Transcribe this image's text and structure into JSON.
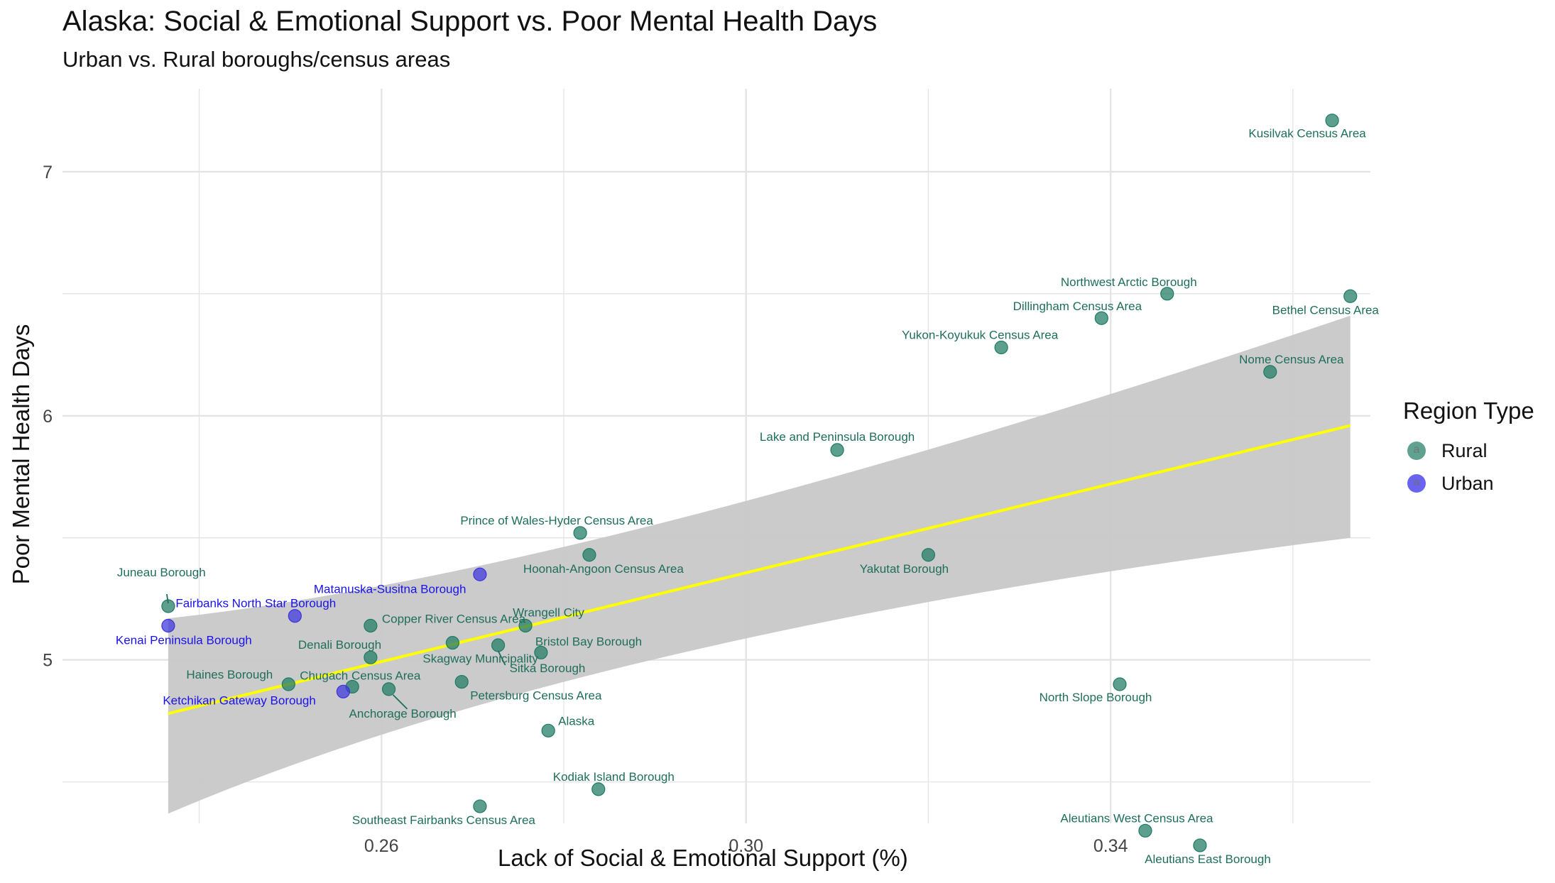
{
  "chart_data": {
    "type": "scatter",
    "title": "Alaska: Social & Emotional Support vs. Poor Mental Health Days",
    "subtitle": "Urban vs. Rural boroughs/census areas",
    "xlabel": "Lack of Social & Emotional Support (%)",
    "ylabel": "Poor Mental Health Days",
    "xlim": [
      0.225,
      0.3685
    ],
    "ylim": [
      4.33,
      7.34
    ],
    "x_ticks": [
      0.26,
      0.3,
      0.34
    ],
    "x_tick_labels": [
      "0.26",
      "0.30",
      "0.34"
    ],
    "y_ticks": [
      5,
      6,
      7
    ],
    "y_tick_labels": [
      "5",
      "6",
      "7"
    ],
    "grid": true,
    "legend": {
      "title": "Region Type",
      "placement": "right",
      "entries": [
        {
          "name": "Rural",
          "color": "#1f7a62",
          "key_glyph": "a"
        },
        {
          "name": "Urban",
          "color": "#2a22e6",
          "key_glyph": "a"
        }
      ]
    },
    "colors": {
      "rural_point": "#1f7a62",
      "rural_label": "#1f6e5a",
      "urban_point": "#3b33dd",
      "urban_label": "#1a12e8",
      "trend_line": "#ffff00",
      "band": "#c8c8c8",
      "grid": "#e4e4e4"
    },
    "trend": {
      "type": "linear",
      "x_range": [
        0.2366,
        0.3663
      ],
      "y_start": 4.78,
      "y_end": 5.96,
      "band_lower": [
        4.37,
        5.5
      ],
      "band_upper": [
        5.17,
        6.41
      ],
      "band_mid_x": 0.283,
      "band_mid": [
        5.11,
        5.36
      ]
    },
    "series": [
      {
        "name": "Rural",
        "points": [
          {
            "label": "Kusilvak Census Area",
            "x": 0.3643,
            "y": 7.21
          },
          {
            "label": "Bethel Census Area",
            "x": 0.3663,
            "y": 6.49
          },
          {
            "label": "Northwest Arctic Borough",
            "x": 0.3462,
            "y": 6.5
          },
          {
            "label": "Dillingham Census Area",
            "x": 0.339,
            "y": 6.4
          },
          {
            "label": "Yukon-Koyukuk Census Area",
            "x": 0.328,
            "y": 6.28
          },
          {
            "label": "Nome Census Area",
            "x": 0.3575,
            "y": 6.18
          },
          {
            "label": "Lake and Peninsula Borough",
            "x": 0.31,
            "y": 5.86
          },
          {
            "label": "Prince of Wales-Hyder Census Area",
            "x": 0.2818,
            "y": 5.52
          },
          {
            "label": "Hoonah-Angoon Census Area",
            "x": 0.2828,
            "y": 5.43
          },
          {
            "label": "Yakutat Borough",
            "x": 0.32,
            "y": 5.43
          },
          {
            "label": "Juneau Borough",
            "x": 0.2366,
            "y": 5.22
          },
          {
            "label": "Copper River Census Area",
            "x": 0.2588,
            "y": 5.14
          },
          {
            "label": "Wrangell City",
            "x": 0.2758,
            "y": 5.14
          },
          {
            "label": "Skagway Municipality",
            "x": 0.2678,
            "y": 5.07
          },
          {
            "label": "Sitka Borough",
            "x": 0.2728,
            "y": 5.06
          },
          {
            "label": "Bristol Bay Borough",
            "x": 0.2775,
            "y": 5.03
          },
          {
            "label": "Denali Borough",
            "x": 0.2588,
            "y": 5.01
          },
          {
            "label": "Petersburg Census Area",
            "x": 0.2688,
            "y": 4.91
          },
          {
            "label": "Haines Borough",
            "x": 0.2498,
            "y": 4.9
          },
          {
            "label": "Chugach Census Area",
            "x": 0.2568,
            "y": 4.89
          },
          {
            "label": "Anchorage Borough",
            "x": 0.2608,
            "y": 4.88
          },
          {
            "label": "North Slope Borough",
            "x": 0.341,
            "y": 4.9
          },
          {
            "label": "Alaska",
            "x": 0.2783,
            "y": 4.71
          },
          {
            "label": "Kodiak Island Borough",
            "x": 0.2838,
            "y": 4.47
          },
          {
            "label": "Southeast Fairbanks Census Area",
            "x": 0.2708,
            "y": 4.4
          },
          {
            "label": "Aleutians West Census Area",
            "x": 0.3438,
            "y": 4.3
          },
          {
            "label": "Aleutians East Borough",
            "x": 0.3498,
            "y": 4.24
          }
        ]
      },
      {
        "name": "Urban",
        "points": [
          {
            "label": "Matanuska-Susitna Borough",
            "x": 0.2708,
            "y": 5.35
          },
          {
            "label": "Fairbanks North Star Borough",
            "x": 0.2505,
            "y": 5.18
          },
          {
            "label": "Kenai Peninsula Borough",
            "x": 0.2366,
            "y": 5.14
          },
          {
            "label": "Ketchikan Gateway Borough",
            "x": 0.2558,
            "y": 4.87
          }
        ]
      }
    ]
  }
}
